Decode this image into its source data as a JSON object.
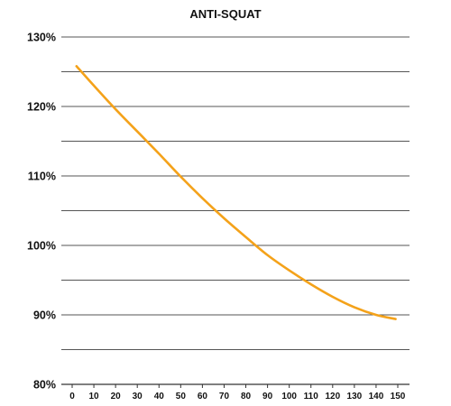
{
  "chart_data": {
    "type": "line",
    "title": "ANTI-SQUAT",
    "xlabel": "",
    "ylabel": "",
    "xlim": [
      0,
      150
    ],
    "ylim": [
      80,
      130
    ],
    "x_ticks": [
      0,
      10,
      20,
      30,
      40,
      50,
      60,
      70,
      80,
      90,
      100,
      110,
      120,
      130,
      140,
      150
    ],
    "y_ticks": [
      80,
      85,
      90,
      95,
      100,
      105,
      110,
      115,
      120,
      125,
      130
    ],
    "y_tick_labels": [
      "80%",
      "",
      "90%",
      "",
      "100%",
      "",
      "110%",
      "",
      "120%",
      "",
      "130%"
    ],
    "grid": "horizontal",
    "legend": "none",
    "line_color": "#F4A21A",
    "grid_color": "#555555",
    "series": [
      {
        "x": [
          2,
          10,
          20,
          30,
          40,
          50,
          60,
          70,
          80,
          90,
          100,
          110,
          120,
          130,
          140,
          149
        ],
        "values": [
          125.8,
          123.0,
          119.6,
          116.4,
          113.2,
          109.9,
          106.8,
          103.9,
          101.2,
          98.6,
          96.4,
          94.4,
          92.6,
          91.1,
          90.0,
          89.4
        ]
      }
    ]
  }
}
